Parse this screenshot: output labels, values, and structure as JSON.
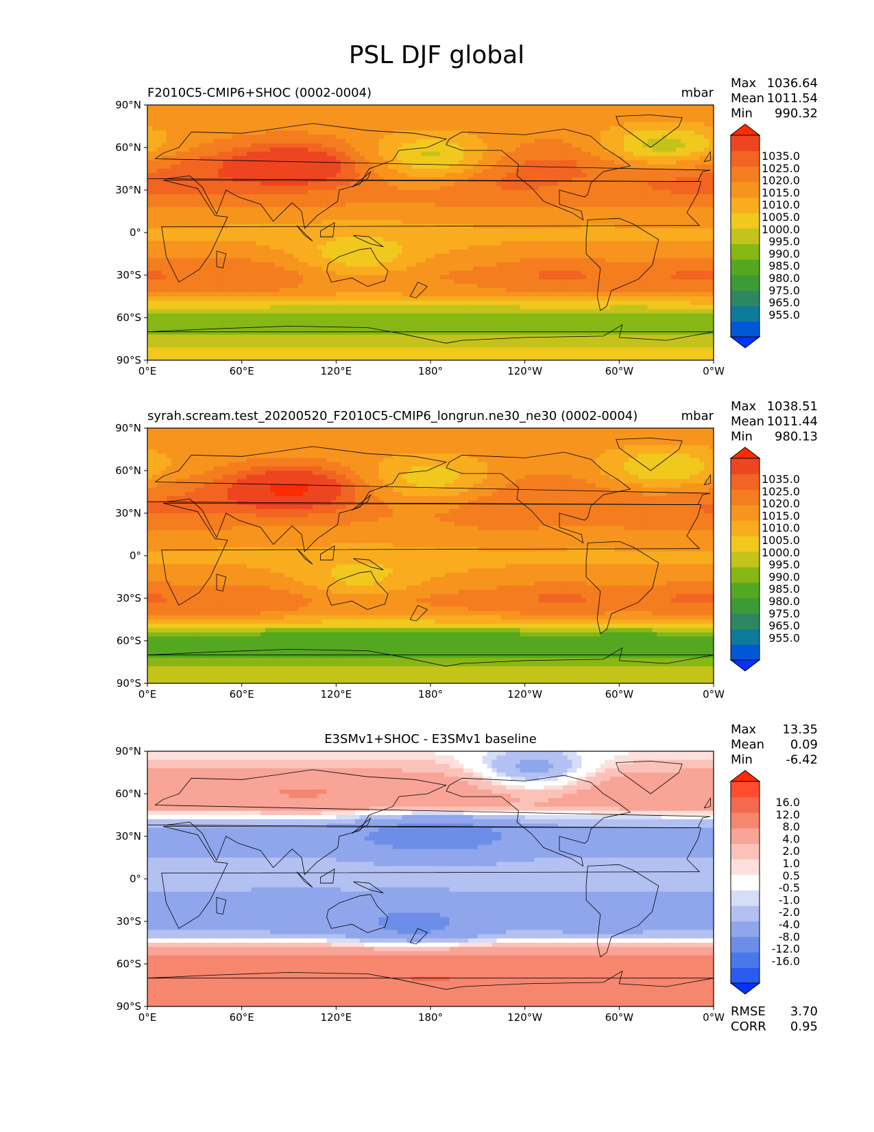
{
  "figure_title": "PSL DJF global",
  "colors": {
    "psl": [
      "#0433ff",
      "#0058d8",
      "#0e7a99",
      "#2e8763",
      "#3d9b35",
      "#54a821",
      "#87b714",
      "#c4c31b",
      "#f0c81e",
      "#f8ac1e",
      "#f7941d",
      "#f47d1f",
      "#f26421",
      "#ee4521",
      "#ff2b00"
    ],
    "diff": [
      "#0433ff",
      "#2a5bf0",
      "#4a78ea",
      "#6d8ee8",
      "#8fa6ec",
      "#b3c0f2",
      "#d5ddf7",
      "#ffffff",
      "#fde0dc",
      "#fbc2ba",
      "#f8a496",
      "#f7866f",
      "#f36a4f",
      "#ff4d2e",
      "#ff2b00"
    ],
    "land_line": "#000000"
  },
  "panels": [
    {
      "left_title": "F2010C5-CMIP6+SHOC (0002-0004)",
      "right_title": "mbar",
      "center_title": "",
      "stats": [
        {
          "label": "Max",
          "value": "1036.64"
        },
        {
          "label": "Mean",
          "value": "1011.54"
        },
        {
          "label": "Min",
          "value": "990.32"
        }
      ],
      "colorbar_levels": [
        "1035.0",
        "1025.0",
        "1020.0",
        "1015.0",
        "1010.0",
        "1005.0",
        "1000.0",
        "995.0",
        "990.0",
        "985.0",
        "980.0",
        "975.0",
        "965.0",
        "955.0"
      ],
      "extra_stats": []
    },
    {
      "left_title": "syrah.scream.test_20200520_F2010C5-CMIP6_longrun.ne30_ne30 (0002-0004)",
      "right_title": "mbar",
      "center_title": "",
      "stats": [
        {
          "label": "Max",
          "value": "1038.51"
        },
        {
          "label": "Mean",
          "value": "1011.44"
        },
        {
          "label": "Min",
          "value": "980.13"
        }
      ],
      "colorbar_levels": [
        "1035.0",
        "1025.0",
        "1020.0",
        "1015.0",
        "1010.0",
        "1005.0",
        "1000.0",
        "995.0",
        "990.0",
        "985.0",
        "980.0",
        "975.0",
        "965.0",
        "955.0"
      ],
      "extra_stats": []
    },
    {
      "left_title": "",
      "right_title": "",
      "center_title": "E3SMv1+SHOC - E3SMv1 baseline",
      "stats": [
        {
          "label": "Max",
          "value": "13.35"
        },
        {
          "label": "Mean",
          "value": "0.09"
        },
        {
          "label": "Min",
          "value": "-6.42"
        }
      ],
      "colorbar_levels": [
        "16.0",
        "12.0",
        "8.0",
        "4.0",
        "2.0",
        "1.0",
        "0.5",
        "-0.5",
        "-1.0",
        "-2.0",
        "-4.0",
        "-8.0",
        "-12.0",
        "-16.0"
      ],
      "extra_stats": [
        {
          "label": "RMSE",
          "value": "3.70"
        },
        {
          "label": "CORR",
          "value": "0.95"
        }
      ]
    }
  ],
  "chart_data": [
    {
      "type": "heatmap",
      "title": "F2010C5-CMIP6+SHOC (0002-0004)",
      "units": "mbar",
      "x_ticks": [
        "0°E",
        "60°E",
        "120°E",
        "180°",
        "120°W",
        "60°W",
        "0°W"
      ],
      "y_ticks": [
        "90°N",
        "60°N",
        "30°N",
        "0°",
        "30°S",
        "60°S",
        "90°S"
      ],
      "xlim": [
        0,
        360
      ],
      "ylim": [
        -90,
        90
      ],
      "levels": [
        955,
        965,
        975,
        980,
        985,
        990,
        995,
        1000,
        1005,
        1010,
        1015,
        1020,
        1025,
        1035
      ],
      "zonal_profile": {
        "lat": [
          -90,
          -80,
          -70,
          -62,
          -55,
          -48,
          -40,
          -30,
          -20,
          -10,
          0,
          10,
          20,
          30,
          40,
          50,
          60,
          70,
          80,
          90
        ],
        "value": [
          1003,
          1000,
          993,
          992,
          996,
          1006,
          1014,
          1016,
          1013,
          1010,
          1009,
          1011,
          1015,
          1017,
          1019,
          1019,
          1015,
          1013,
          1014,
          1015
        ]
      },
      "highs": [
        {
          "lon": 90,
          "lat": 48,
          "value": 1035
        },
        {
          "lon": 25,
          "lat": 35,
          "value": 1022
        },
        {
          "lon": 228,
          "lat": 32,
          "value": 1021
        },
        {
          "lon": 330,
          "lat": 33,
          "value": 1021
        },
        {
          "lon": 262,
          "lat": 56,
          "value": 1019
        },
        {
          "lon": 262,
          "lat": -30,
          "value": 1021
        },
        {
          "lon": 350,
          "lat": -30,
          "value": 1021
        },
        {
          "lon": 60,
          "lat": -30,
          "value": 1020
        }
      ],
      "lows": [
        {
          "lon": 180,
          "lat": 52,
          "value": 1000
        },
        {
          "lon": 328,
          "lat": 60,
          "value": 998
        },
        {
          "lon": 135,
          "lat": -18,
          "value": 1002
        }
      ],
      "stats": {
        "max": 1036.64,
        "mean": 1011.54,
        "min": 990.32
      }
    },
    {
      "type": "heatmap",
      "title": "syrah.scream.test_20200520_F2010C5-CMIP6_longrun.ne30_ne30 (0002-0004)",
      "units": "mbar",
      "x_ticks": [
        "0°E",
        "60°E",
        "120°E",
        "180°",
        "120°W",
        "60°W",
        "0°W"
      ],
      "y_ticks": [
        "90°N",
        "60°N",
        "30°N",
        "0°",
        "30°S",
        "60°S",
        "90°S"
      ],
      "xlim": [
        0,
        360
      ],
      "ylim": [
        -90,
        90
      ],
      "levels": [
        955,
        965,
        975,
        980,
        985,
        990,
        995,
        1000,
        1005,
        1010,
        1015,
        1020,
        1025,
        1035
      ],
      "zonal_profile": {
        "lat": [
          -90,
          -80,
          -70,
          -62,
          -55,
          -48,
          -40,
          -30,
          -20,
          -10,
          0,
          10,
          20,
          30,
          40,
          50,
          60,
          70,
          80,
          90
        ],
        "value": [
          1000,
          996,
          988,
          987,
          990,
          1003,
          1014,
          1017,
          1013,
          1010,
          1009,
          1011,
          1014,
          1016,
          1017,
          1016,
          1013,
          1012,
          1013,
          1014
        ]
      },
      "highs": [
        {
          "lon": 90,
          "lat": 48,
          "value": 1037
        },
        {
          "lon": 25,
          "lat": 35,
          "value": 1020
        },
        {
          "lon": 228,
          "lat": 32,
          "value": 1019
        },
        {
          "lon": 330,
          "lat": 33,
          "value": 1020
        },
        {
          "lon": 262,
          "lat": 56,
          "value": 1016
        },
        {
          "lon": 262,
          "lat": -30,
          "value": 1021
        },
        {
          "lon": 350,
          "lat": -30,
          "value": 1021
        },
        {
          "lon": 60,
          "lat": -30,
          "value": 1020
        }
      ],
      "lows": [
        {
          "lon": 180,
          "lat": 52,
          "value": 1003
        },
        {
          "lon": 328,
          "lat": 60,
          "value": 1000
        },
        {
          "lon": 135,
          "lat": -18,
          "value": 1004
        }
      ],
      "stats": {
        "max": 1038.51,
        "mean": 1011.44,
        "min": 980.13
      }
    },
    {
      "type": "heatmap",
      "title": "E3SMv1+SHOC - E3SMv1 baseline",
      "units": "mbar",
      "x_ticks": [
        "0°E",
        "60°E",
        "120°E",
        "180°",
        "120°W",
        "60°W",
        "0°W"
      ],
      "y_ticks": [
        "90°N",
        "60°N",
        "30°N",
        "0°",
        "30°S",
        "60°S",
        "90°S"
      ],
      "xlim": [
        0,
        360
      ],
      "ylim": [
        -90,
        90
      ],
      "levels": [
        -16,
        -12,
        -8,
        -4,
        -2,
        -1,
        -0.5,
        0.5,
        1,
        2,
        4,
        8,
        12,
        16
      ],
      "zonal_profile": {
        "lat": [
          -90,
          -80,
          -70,
          -62,
          -55,
          -48,
          -44,
          -40,
          -30,
          -20,
          -10,
          0,
          10,
          20,
          30,
          40,
          45,
          50,
          60,
          70,
          80,
          90
        ],
        "value": [
          5,
          6,
          7,
          6.5,
          5,
          2,
          0,
          -1.5,
          -2.5,
          -2.5,
          -2,
          -1.6,
          -1.7,
          -2.2,
          -2.8,
          -1.5,
          0,
          2.5,
          3.5,
          3,
          1.5,
          0.5
        ]
      },
      "highs": [
        {
          "lon": 100,
          "lat": 58,
          "value": 4
        },
        {
          "lon": 290,
          "lat": 58,
          "value": 3
        },
        {
          "lon": 180,
          "lat": -72,
          "value": 8
        }
      ],
      "lows": [
        {
          "lon": 165,
          "lat": 32,
          "value": -4.5
        },
        {
          "lon": 200,
          "lat": 32,
          "value": -4.5
        },
        {
          "lon": 170,
          "lat": -35,
          "value": -4.5
        },
        {
          "lon": 90,
          "lat": -25,
          "value": -3
        },
        {
          "lon": 290,
          "lat": -30,
          "value": -3
        },
        {
          "lon": 245,
          "lat": 75,
          "value": -2
        }
      ],
      "stats": {
        "max": 13.35,
        "mean": 0.09,
        "min": -6.42,
        "rmse": 3.7,
        "corr": 0.95
      }
    }
  ]
}
